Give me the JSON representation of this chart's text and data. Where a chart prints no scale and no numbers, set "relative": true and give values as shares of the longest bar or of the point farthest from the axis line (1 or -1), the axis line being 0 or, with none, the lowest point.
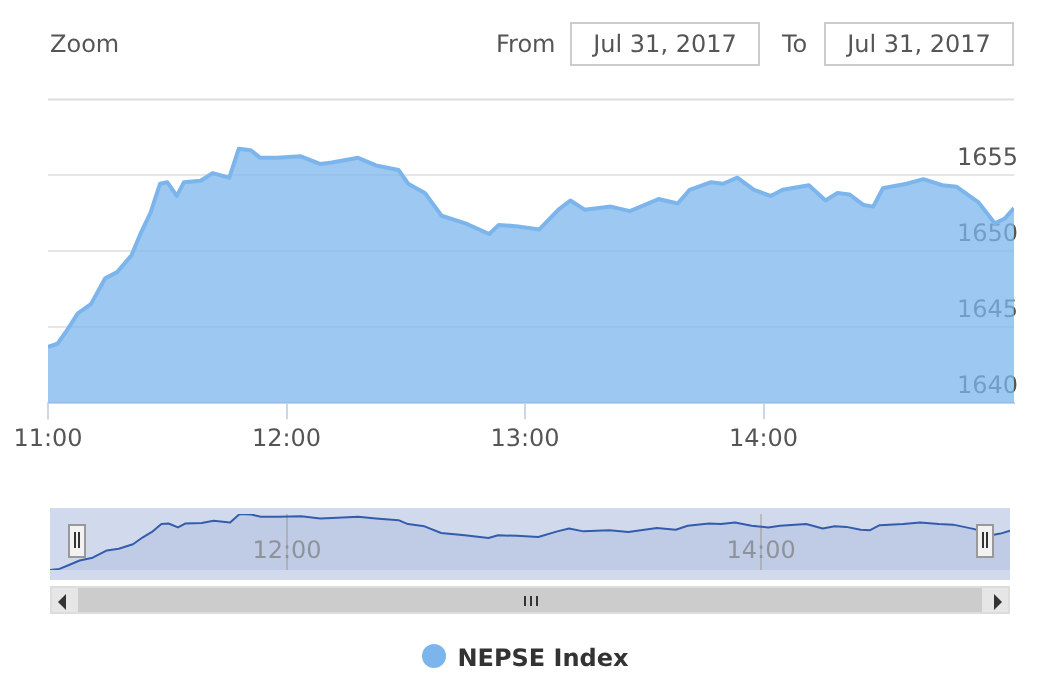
{
  "chart_data": [
    {
      "type": "area",
      "annotations": [
        "Zoom",
        "From",
        "Jul 31, 2017",
        "To",
        "Jul 31, 2017"
      ],
      "x": [
        11.0,
        11.04,
        11.08,
        11.125,
        11.18,
        11.24,
        11.29,
        11.35,
        11.39,
        11.43,
        11.47,
        11.5,
        11.54,
        11.57,
        11.64,
        11.69,
        11.76,
        11.8,
        11.85,
        11.89,
        11.96,
        12.06,
        12.14,
        12.19,
        12.3,
        12.375,
        12.47,
        12.51,
        12.58,
        12.65,
        12.75,
        12.85,
        12.89,
        12.97,
        13.06,
        13.14,
        13.19,
        13.25,
        13.36,
        13.44,
        13.56,
        13.64,
        13.69,
        13.78,
        13.83,
        13.89,
        13.96,
        14.03,
        14.08,
        14.19,
        14.26,
        14.31,
        14.36,
        14.42,
        14.46,
        14.5,
        14.6,
        14.67,
        14.75,
        14.81,
        14.9,
        14.97,
        15.01,
        15.05
      ],
      "series": [
        {
          "name": "NEPSE Index",
          "color": "#7cb5ec",
          "values": [
            1643.7,
            1643.9,
            1644.8,
            1645.9,
            1646.5,
            1648.2,
            1648.6,
            1649.7,
            1651.2,
            1652.5,
            1654.4,
            1654.5,
            1653.6,
            1654.5,
            1654.6,
            1655.1,
            1654.8,
            1656.7,
            1656.6,
            1656.1,
            1656.1,
            1656.2,
            1655.7,
            1655.8,
            1656.1,
            1655.6,
            1655.3,
            1654.4,
            1653.8,
            1652.3,
            1651.8,
            1651.1,
            1651.7,
            1651.6,
            1651.4,
            1652.7,
            1653.3,
            1652.7,
            1652.9,
            1652.6,
            1653.4,
            1653.1,
            1654.0,
            1654.5,
            1654.4,
            1654.8,
            1654.0,
            1653.6,
            1654.0,
            1654.3,
            1653.3,
            1653.8,
            1653.7,
            1653.0,
            1652.9,
            1654.1,
            1654.4,
            1654.7,
            1654.3,
            1654.2,
            1653.2,
            1651.8,
            1652.1,
            1652.8
          ]
        }
      ],
      "xlim": [
        11,
        15.05
      ],
      "xticks": [
        {
          "value": 11,
          "label": "11:00"
        },
        {
          "value": 12,
          "label": "12:00"
        },
        {
          "value": 13,
          "label": "13:00"
        },
        {
          "value": 14,
          "label": "14:00"
        }
      ],
      "ylim": [
        1640,
        1660
      ],
      "yticks": [
        1640,
        1645,
        1650,
        1655
      ],
      "grid": "y",
      "legend": "bottom"
    },
    {
      "type": "area",
      "x": [
        11.0,
        11.04,
        11.08,
        11.125,
        11.18,
        11.24,
        11.29,
        11.35,
        11.39,
        11.43,
        11.47,
        11.5,
        11.54,
        11.57,
        11.64,
        11.69,
        11.76,
        11.8,
        11.85,
        11.89,
        11.96,
        12.06,
        12.14,
        12.19,
        12.3,
        12.375,
        12.47,
        12.51,
        12.58,
        12.65,
        12.75,
        12.85,
        12.89,
        12.97,
        13.06,
        13.14,
        13.19,
        13.25,
        13.36,
        13.44,
        13.56,
        13.64,
        13.69,
        13.78,
        13.83,
        13.89,
        13.96,
        14.03,
        14.08,
        14.19,
        14.26,
        14.31,
        14.36,
        14.42,
        14.46,
        14.5,
        14.6,
        14.67,
        14.75,
        14.81,
        14.9,
        14.97,
        15.01,
        15.05
      ],
      "series": [
        {
          "color": "#335cad",
          "values": [
            0,
            0.02,
            0.09,
            0.17,
            0.22,
            0.35,
            0.38,
            0.46,
            0.58,
            0.68,
            0.82,
            0.83,
            0.76,
            0.83,
            0.84,
            0.88,
            0.85,
            1,
            0.99,
            0.95,
            0.95,
            0.96,
            0.92,
            0.93,
            0.95,
            0.92,
            0.89,
            0.82,
            0.78,
            0.66,
            0.62,
            0.57,
            0.62,
            0.61,
            0.59,
            0.69,
            0.74,
            0.69,
            0.71,
            0.68,
            0.75,
            0.72,
            0.79,
            0.83,
            0.82,
            0.85,
            0.79,
            0.76,
            0.79,
            0.82,
            0.74,
            0.78,
            0.77,
            0.72,
            0.71,
            0.8,
            0.82,
            0.85,
            0.82,
            0.81,
            0.73,
            0.62,
            0.65,
            0.7
          ]
        }
      ],
      "relative": true,
      "xlim": [
        11,
        15.05
      ],
      "xticks": [
        {
          "value": 12,
          "label": "12:00"
        },
        {
          "value": 14,
          "label": "14:00"
        }
      ],
      "tick_labels": "x",
      "grid": "x"
    }
  ]
}
